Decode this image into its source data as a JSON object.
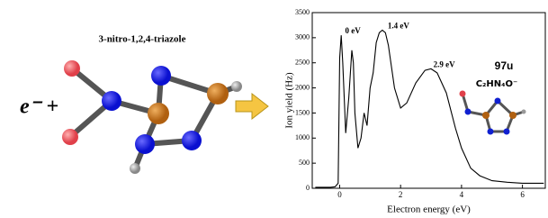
{
  "molecule_title": "3-nitro-1,2,4-triazole",
  "reaction_text": "e⁻ +",
  "chart_data": {
    "type": "line",
    "x_label": "Electron energy (eV)",
    "y_label": "Ion yield (Hz)",
    "annotations": [
      {
        "text": "0 eV",
        "x": 0.0,
        "y": 3050
      },
      {
        "text": "1.4 eV",
        "x": 1.4,
        "y": 3150
      },
      {
        "text": "2.9 eV",
        "x": 2.9,
        "y": 2380
      }
    ],
    "mass_label": "97u",
    "ion_formula": "C₂HN₄O⁻",
    "series": [
      {
        "color": "#000000",
        "x": [
          -0.8,
          -0.3,
          -0.15,
          -0.05,
          0,
          0.05,
          0.1,
          0.2,
          0.3,
          0.4,
          0.45,
          0.5,
          0.6,
          0.7,
          0.8,
          0.9,
          1.0,
          1.1,
          1.2,
          1.3,
          1.4,
          1.5,
          1.6,
          1.8,
          2.0,
          2.2,
          2.5,
          2.8,
          3.0,
          3.2,
          3.5,
          3.8,
          4.0,
          4.3,
          4.6,
          5.0,
          5.5,
          6.0,
          6.7
        ],
        "values": [
          20,
          20,
          30,
          100,
          2600,
          3050,
          2500,
          1100,
          1800,
          2750,
          2500,
          1500,
          800,
          1000,
          1500,
          1250,
          2000,
          2300,
          2900,
          3100,
          3150,
          3100,
          2850,
          2000,
          1600,
          1700,
          2100,
          2350,
          2380,
          2300,
          1900,
          1200,
          800,
          400,
          250,
          150,
          120,
          100,
          100
        ]
      }
    ],
    "xlim": [
      -0.9,
      6.75
    ],
    "xticks": [
      0,
      2,
      4,
      6
    ],
    "ylim": [
      0,
      3500
    ],
    "yticks": [
      0,
      500,
      1000,
      1500,
      2000,
      2500,
      3000,
      3500
    ]
  }
}
